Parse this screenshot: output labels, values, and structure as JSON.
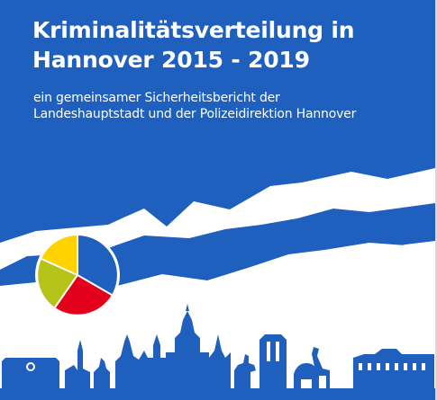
{
  "cover": {
    "title_line1": "Kriminalitätsverteilung in",
    "title_line2": "Hannover 2015 - 2019",
    "subtitle_line1": "ein gemeinsamer Sicherheitsbericht der",
    "subtitle_line2": "Landeshauptstadt und der Polizeidirektion Hannover"
  },
  "colors": {
    "background": "#1f5fbe",
    "mountains": "#ffffff",
    "skyline": "#1f5fbe",
    "pie_blue": "#1f5fbe",
    "pie_red": "#e2001a",
    "pie_olive": "#b6c41a",
    "pie_yellow": "#ffd200"
  },
  "illustration": {
    "pie_segments": [
      {
        "name": "blue",
        "fraction": 0.4
      },
      {
        "name": "red",
        "fraction": 0.2
      },
      {
        "name": "olive",
        "fraction": 0.25
      },
      {
        "name": "yellow",
        "fraction": 0.15
      }
    ]
  }
}
